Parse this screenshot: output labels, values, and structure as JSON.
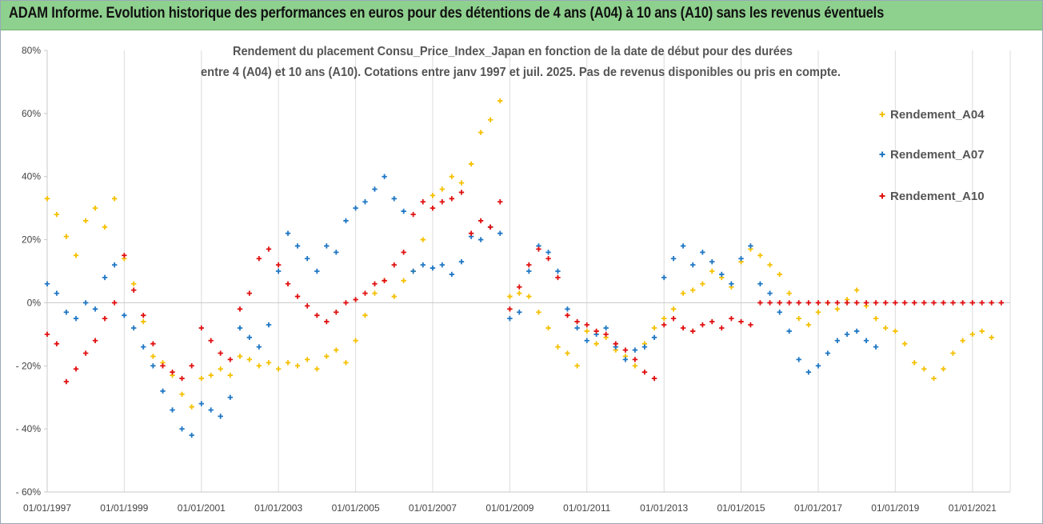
{
  "banner": {
    "title": "ADAM Informe. Evolution historique des performances en euros pour des détentions de 4 ans (A04) à 10 ans (A10) sans les revenus éventuels"
  },
  "chart_data": {
    "type": "scatter",
    "title_lines": [
      "Rendement du placement Consu_Price_Index_Japan en fonction de la date de début pour des durées",
      "entre 4 (A04) et 10 ans (A10). Cotations entre janv 1997 et juil. 2025. Pas de revenus disponibles ou pris en compte."
    ],
    "x_axis": {
      "type": "date",
      "tick_labels": [
        "01/01/1997",
        "01/01/1999",
        "01/01/2001",
        "01/01/2003",
        "01/01/2005",
        "01/01/2007",
        "01/01/2009",
        "01/01/2011",
        "01/01/2013",
        "01/01/2015",
        "01/01/2017",
        "01/01/2019",
        "01/01/2021"
      ],
      "range": [
        "1997-01-01",
        "2022-01-01"
      ]
    },
    "y_axis": {
      "tick_labels": [
        "80%",
        "60%",
        "40%",
        "20%",
        "0%",
        "- 20%",
        "- 40%",
        "- 60%"
      ],
      "tick_values": [
        80,
        60,
        40,
        20,
        0,
        -20,
        -40,
        -60
      ],
      "range": [
        -60,
        80
      ],
      "unit": "%"
    },
    "grid": "vertical",
    "legend_position": "right",
    "marker": "plus",
    "series": [
      {
        "name": "Rendement_A04",
        "color": "#f5c000",
        "x": [
          "1997-01",
          "1997-04",
          "1997-07",
          "1997-10",
          "1998-01",
          "1998-04",
          "1998-07",
          "1998-10",
          "1999-01",
          "1999-04",
          "1999-07",
          "1999-10",
          "2000-01",
          "2000-04",
          "2000-07",
          "2000-10",
          "2001-01",
          "2001-04",
          "2001-07",
          "2001-10",
          "2002-01",
          "2002-04",
          "2002-07",
          "2002-10",
          "2003-01",
          "2003-04",
          "2003-07",
          "2003-10",
          "2004-01",
          "2004-04",
          "2004-07",
          "2004-10",
          "2005-01",
          "2005-04",
          "2005-07",
          "2005-10",
          "2006-01",
          "2006-04",
          "2006-07",
          "2006-10",
          "2007-01",
          "2007-04",
          "2007-07",
          "2007-10",
          "2008-01",
          "2008-04",
          "2008-07",
          "2008-10",
          "2009-01",
          "2009-04",
          "2009-07",
          "2009-10",
          "2010-01",
          "2010-04",
          "2010-07",
          "2010-10",
          "2011-01",
          "2011-04",
          "2011-07",
          "2011-10",
          "2012-01",
          "2012-04",
          "2012-07",
          "2012-10",
          "2013-01",
          "2013-04",
          "2013-07",
          "2013-10",
          "2014-01",
          "2014-04",
          "2014-07",
          "2014-10",
          "2015-01",
          "2015-04",
          "2015-07",
          "2015-10",
          "2016-01",
          "2016-04",
          "2016-07",
          "2016-10",
          "2017-01",
          "2017-04",
          "2017-07",
          "2017-10",
          "2018-01",
          "2018-04",
          "2018-07",
          "2018-10",
          "2019-01",
          "2019-04",
          "2019-07",
          "2019-10",
          "2020-01",
          "2020-04",
          "2020-07",
          "2020-10",
          "2021-01",
          "2021-04",
          "2021-07"
        ],
        "y": [
          33,
          28,
          21,
          15,
          26,
          30,
          24,
          33,
          14,
          6,
          -6,
          -17,
          -19,
          -23,
          -29,
          -33,
          -24,
          -23,
          -21,
          -23,
          -17,
          -18,
          -20,
          -19,
          -21,
          -19,
          -20,
          -18,
          -21,
          -17,
          -15,
          -19,
          -12,
          -4,
          3,
          7,
          2,
          7,
          10,
          20,
          34,
          36,
          40,
          38,
          44,
          54,
          58,
          64,
          2,
          3,
          2,
          -3,
          -8,
          -14,
          -16,
          -20,
          -9,
          -13,
          -11,
          -15,
          -17,
          -20,
          -13,
          -8,
          -5,
          -2,
          3,
          4,
          6,
          10,
          8,
          5,
          13,
          17,
          15,
          12,
          9,
          3,
          -5,
          -7,
          -3,
          0,
          -2,
          1,
          4,
          -1,
          -5,
          -8,
          -9,
          -13,
          -19,
          -21,
          -24,
          -21,
          -16,
          -12,
          -10,
          -9,
          -11
        ]
      },
      {
        "name": "Rendement_A07",
        "color": "#1f77c4",
        "x": [
          "1997-01",
          "1997-04",
          "1997-07",
          "1997-10",
          "1998-01",
          "1998-04",
          "1998-07",
          "1998-10",
          "1999-01",
          "1999-04",
          "1999-07",
          "1999-10",
          "2000-01",
          "2000-04",
          "2000-07",
          "2000-10",
          "2001-01",
          "2001-04",
          "2001-07",
          "2001-10",
          "2002-01",
          "2002-04",
          "2002-07",
          "2002-10",
          "2003-01",
          "2003-04",
          "2003-07",
          "2003-10",
          "2004-01",
          "2004-04",
          "2004-07",
          "2004-10",
          "2005-01",
          "2005-04",
          "2005-07",
          "2005-10",
          "2006-01",
          "2006-04",
          "2006-07",
          "2006-10",
          "2007-01",
          "2007-04",
          "2007-07",
          "2007-10",
          "2008-01",
          "2008-04",
          "2008-07",
          "2008-10",
          "2009-01",
          "2009-04",
          "2009-07",
          "2009-10",
          "2010-01",
          "2010-04",
          "2010-07",
          "2010-10",
          "2011-01",
          "2011-04",
          "2011-07",
          "2011-10",
          "2012-01",
          "2012-04",
          "2012-07",
          "2012-10",
          "2013-01",
          "2013-04",
          "2013-07",
          "2013-10",
          "2014-01",
          "2014-04",
          "2014-07",
          "2014-10",
          "2015-01",
          "2015-04",
          "2015-07",
          "2015-10",
          "2016-01",
          "2016-04",
          "2016-07",
          "2016-10",
          "2017-01",
          "2017-04",
          "2017-07",
          "2017-10",
          "2018-01",
          "2018-04",
          "2018-07"
        ],
        "y": [
          6,
          3,
          -3,
          -5,
          0,
          -2,
          8,
          12,
          -4,
          -8,
          -14,
          -20,
          -28,
          -34,
          -40,
          -42,
          -32,
          -34,
          -36,
          -30,
          -8,
          -11,
          -14,
          -7,
          10,
          22,
          18,
          14,
          10,
          18,
          16,
          26,
          30,
          32,
          36,
          40,
          33,
          29,
          10,
          12,
          11,
          12,
          9,
          13,
          21,
          20,
          24,
          22,
          -5,
          -3,
          10,
          18,
          16,
          10,
          -2,
          -8,
          -12,
          -10,
          -8,
          -14,
          -18,
          -15,
          -14,
          -11,
          8,
          14,
          18,
          12,
          16,
          13,
          9,
          6,
          14,
          18,
          6,
          3,
          -3,
          -9,
          -18,
          -22,
          -20,
          -16,
          -12,
          -10,
          -9,
          -12,
          -14
        ]
      },
      {
        "name": "Rendement_A10",
        "color": "#e01010",
        "x": [
          "1997-01",
          "1997-04",
          "1997-07",
          "1997-10",
          "1998-01",
          "1998-04",
          "1998-07",
          "1998-10",
          "1999-01",
          "1999-04",
          "1999-07",
          "1999-10",
          "2000-01",
          "2000-04",
          "2000-07",
          "2000-10",
          "2001-01",
          "2001-04",
          "2001-07",
          "2001-10",
          "2002-01",
          "2002-04",
          "2002-07",
          "2002-10",
          "2003-01",
          "2003-04",
          "2003-07",
          "2003-10",
          "2004-01",
          "2004-04",
          "2004-07",
          "2004-10",
          "2005-01",
          "2005-04",
          "2005-07",
          "2005-10",
          "2006-01",
          "2006-04",
          "2006-07",
          "2006-10",
          "2007-01",
          "2007-04",
          "2007-07",
          "2007-10",
          "2008-01",
          "2008-04",
          "2008-07",
          "2008-10",
          "2009-01",
          "2009-04",
          "2009-07",
          "2009-10",
          "2010-01",
          "2010-04",
          "2010-07",
          "2010-10",
          "2011-01",
          "2011-04",
          "2011-07",
          "2011-10",
          "2012-01",
          "2012-04",
          "2012-07",
          "2012-10",
          "2013-01",
          "2013-04",
          "2013-07",
          "2013-10",
          "2014-01",
          "2014-04",
          "2014-07",
          "2014-10",
          "2015-01",
          "2015-04",
          "2015-07",
          "2015-10",
          "2016-01",
          "2016-04",
          "2016-07",
          "2016-10",
          "2017-01",
          "2017-04",
          "2017-07",
          "2017-10",
          "2018-01",
          "2018-04",
          "2018-07",
          "2018-10",
          "2019-01",
          "2019-04",
          "2019-07",
          "2019-10",
          "2020-01",
          "2020-04",
          "2020-07",
          "2020-10",
          "2021-01",
          "2021-04",
          "2021-07",
          "2021-10"
        ],
        "y": [
          -10,
          -13,
          -25,
          -21,
          -16,
          -12,
          -5,
          0,
          15,
          4,
          -4,
          -13,
          -20,
          -22,
          -24,
          -20,
          -8,
          -12,
          -16,
          -18,
          -2,
          3,
          14,
          17,
          12,
          6,
          2,
          -1,
          -4,
          -6,
          -3,
          0,
          1,
          3,
          6,
          7,
          12,
          16,
          28,
          32,
          30,
          32,
          33,
          35,
          22,
          26,
          24,
          32,
          -2,
          5,
          12,
          17,
          14,
          8,
          -4,
          -6,
          -7,
          -9,
          -10,
          -13,
          -15,
          -18,
          -22,
          -24,
          -7,
          -5,
          -8,
          -9,
          -7,
          -6,
          -8,
          -5,
          -6,
          -7,
          0,
          0,
          0,
          0,
          0,
          0,
          0,
          0,
          0,
          0,
          0,
          0,
          0,
          0,
          0,
          0,
          0,
          0,
          0,
          0,
          0,
          0,
          0,
          0,
          0,
          0
        ]
      }
    ]
  }
}
